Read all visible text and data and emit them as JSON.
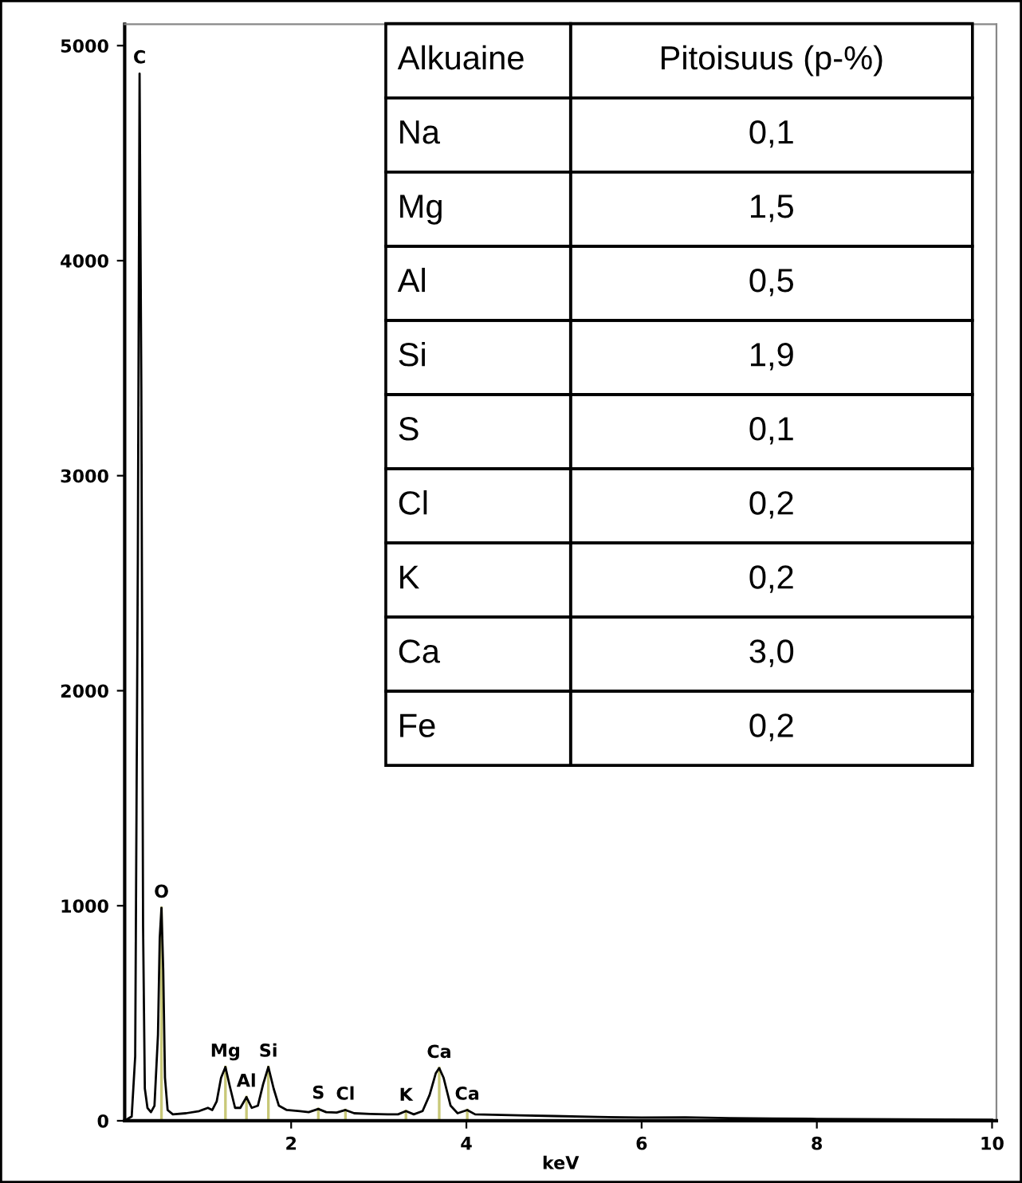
{
  "chart_data": [
    {
      "type": "line",
      "xlabel": "keV",
      "xlim": [
        0.1,
        10.05
      ],
      "ylim": [
        0,
        5100
      ],
      "xticks": [
        2,
        4,
        6,
        8,
        10
      ],
      "yticks": [
        0,
        1000,
        2000,
        3000,
        4000,
        5000
      ],
      "grid": false,
      "legend": false,
      "marker": "none",
      "line_style": "solid",
      "series": [
        {
          "color": "#000000",
          "x": [
            0.1,
            0.18,
            0.22,
            0.25,
            0.27,
            0.29,
            0.31,
            0.33,
            0.36,
            0.4,
            0.44,
            0.48,
            0.5,
            0.52,
            0.54,
            0.56,
            0.59,
            0.65,
            0.8,
            0.95,
            1.05,
            1.1,
            1.15,
            1.2,
            1.25,
            1.3,
            1.36,
            1.42,
            1.49,
            1.55,
            1.62,
            1.68,
            1.74,
            1.8,
            1.86,
            1.95,
            2.1,
            2.2,
            2.31,
            2.4,
            2.52,
            2.62,
            2.72,
            2.9,
            3.1,
            3.22,
            3.31,
            3.4,
            3.5,
            3.58,
            3.65,
            3.69,
            3.74,
            3.82,
            3.9,
            4.01,
            4.1,
            4.3,
            4.6,
            5.0,
            5.5,
            6.0,
            6.5,
            7.0,
            7.5,
            8.0,
            9.0,
            10.0
          ],
          "values": [
            0,
            20,
            300,
            2600,
            4870,
            3400,
            900,
            150,
            60,
            40,
            70,
            400,
            850,
            990,
            700,
            200,
            50,
            30,
            35,
            45,
            60,
            50,
            90,
            200,
            250,
            160,
            60,
            60,
            110,
            60,
            70,
            170,
            250,
            150,
            70,
            50,
            45,
            40,
            55,
            40,
            38,
            50,
            35,
            32,
            30,
            30,
            45,
            30,
            45,
            120,
            220,
            245,
            200,
            70,
            35,
            50,
            30,
            28,
            25,
            22,
            18,
            15,
            16,
            12,
            10,
            9,
            7,
            5
          ]
        }
      ],
      "annotations": [
        {
          "text": "C",
          "x": 0.27,
          "y": 4870
        },
        {
          "text": "O",
          "x": 0.52,
          "y": 990
        },
        {
          "text": "Mg",
          "x": 1.25,
          "y": 250
        },
        {
          "text": "Al",
          "x": 1.49,
          "y": 110
        },
        {
          "text": "Si",
          "x": 1.74,
          "y": 250
        },
        {
          "text": "S",
          "x": 2.31,
          "y": 55
        },
        {
          "text": "Cl",
          "x": 2.62,
          "y": 50
        },
        {
          "text": "K",
          "x": 3.31,
          "y": 45
        },
        {
          "text": "Ca",
          "x": 3.69,
          "y": 245
        },
        {
          "text": "Ca",
          "x": 4.01,
          "y": 50
        }
      ]
    },
    {
      "type": "other",
      "annotations": [
        "Alkuaine",
        "Pitoisuus (p-%)"
      ],
      "categories": [
        "Na",
        "Mg",
        "Al",
        "Si",
        "S",
        "Cl",
        "K",
        "Ca",
        "Fe"
      ],
      "value_labels": [
        "0,1",
        "1,5",
        "0,5",
        "1,9",
        "0,1",
        "0,2",
        "0,2",
        "3,0",
        "0,2"
      ]
    }
  ]
}
